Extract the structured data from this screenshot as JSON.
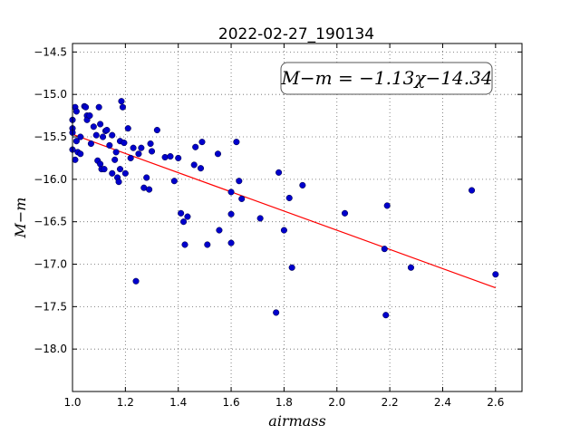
{
  "chart_data": {
    "type": "scatter",
    "title": "2022-02-27_190134",
    "xlabel": "airmass",
    "ylabel": "M−m",
    "xlim": [
      1.0,
      2.7
    ],
    "ylim": [
      -18.5,
      -14.4
    ],
    "y_inverted": true,
    "grid": true,
    "x_ticks": [
      "1.0",
      "1.2",
      "1.4",
      "1.6",
      "1.8",
      "2.0",
      "2.2",
      "2.4",
      "2.6"
    ],
    "y_ticks": [
      "−14.5",
      "−15.0",
      "−15.5",
      "−16.0",
      "−16.5",
      "−17.0",
      "−17.5",
      "−18.0"
    ],
    "annotation": "M−m = −1.13χ−14.34",
    "fit": {
      "slope": -1.13,
      "intercept": -14.34,
      "x_range": [
        1.0,
        2.6
      ],
      "color": "#ff0000"
    },
    "marker_color": "#0000cc",
    "points": [
      [
        1.0,
        -15.3
      ],
      [
        1.0,
        -15.4
      ],
      [
        1.0,
        -15.45
      ],
      [
        1.0,
        -15.65
      ],
      [
        1.01,
        -15.77
      ],
      [
        1.01,
        -15.15
      ],
      [
        1.015,
        -15.2
      ],
      [
        1.015,
        -15.55
      ],
      [
        1.02,
        -15.68
      ],
      [
        1.03,
        -15.7
      ],
      [
        1.03,
        -15.5
      ],
      [
        1.045,
        -15.14
      ],
      [
        1.05,
        -15.15
      ],
      [
        1.055,
        -15.25
      ],
      [
        1.055,
        -15.3
      ],
      [
        1.065,
        -15.25
      ],
      [
        1.07,
        -15.58
      ],
      [
        1.08,
        -15.38
      ],
      [
        1.09,
        -15.48
      ],
      [
        1.095,
        -15.78
      ],
      [
        1.1,
        -15.15
      ],
      [
        1.105,
        -15.35
      ],
      [
        1.105,
        -15.82
      ],
      [
        1.11,
        -15.88
      ],
      [
        1.115,
        -15.5
      ],
      [
        1.12,
        -15.88
      ],
      [
        1.125,
        -15.43
      ],
      [
        1.13,
        -15.42
      ],
      [
        1.14,
        -15.6
      ],
      [
        1.15,
        -15.93
      ],
      [
        1.15,
        -15.48
      ],
      [
        1.16,
        -15.77
      ],
      [
        1.165,
        -15.68
      ],
      [
        1.17,
        -15.98
      ],
      [
        1.175,
        -16.03
      ],
      [
        1.18,
        -15.88
      ],
      [
        1.18,
        -15.55
      ],
      [
        1.185,
        -15.08
      ],
      [
        1.19,
        -15.15
      ],
      [
        1.195,
        -15.57
      ],
      [
        1.2,
        -15.93
      ],
      [
        1.21,
        -15.4
      ],
      [
        1.22,
        -15.75
      ],
      [
        1.23,
        -15.63
      ],
      [
        1.24,
        -17.2
      ],
      [
        1.25,
        -15.7
      ],
      [
        1.26,
        -15.63
      ],
      [
        1.27,
        -16.1
      ],
      [
        1.28,
        -15.98
      ],
      [
        1.29,
        -16.12
      ],
      [
        1.295,
        -15.58
      ],
      [
        1.3,
        -15.67
      ],
      [
        1.32,
        -15.42
      ],
      [
        1.35,
        -15.74
      ],
      [
        1.37,
        -15.73
      ],
      [
        1.385,
        -16.02
      ],
      [
        1.4,
        -15.75
      ],
      [
        1.41,
        -16.4
      ],
      [
        1.42,
        -16.5
      ],
      [
        1.425,
        -16.77
      ],
      [
        1.435,
        -16.44
      ],
      [
        1.46,
        -15.83
      ],
      [
        1.465,
        -15.62
      ],
      [
        1.485,
        -15.87
      ],
      [
        1.49,
        -15.56
      ],
      [
        1.51,
        -16.77
      ],
      [
        1.55,
        -15.7
      ],
      [
        1.555,
        -16.6
      ],
      [
        1.6,
        -16.15
      ],
      [
        1.6,
        -16.41
      ],
      [
        1.6,
        -16.75
      ],
      [
        1.62,
        -15.56
      ],
      [
        1.63,
        -16.02
      ],
      [
        1.64,
        -16.23
      ],
      [
        1.71,
        -16.46
      ],
      [
        1.77,
        -17.57
      ],
      [
        1.78,
        -15.92
      ],
      [
        1.8,
        -16.6
      ],
      [
        1.82,
        -16.22
      ],
      [
        1.83,
        -17.04
      ],
      [
        1.87,
        -16.07
      ],
      [
        2.03,
        -16.4
      ],
      [
        2.18,
        -16.82
      ],
      [
        2.185,
        -17.6
      ],
      [
        2.19,
        -16.31
      ],
      [
        2.28,
        -17.04
      ],
      [
        2.51,
        -16.13
      ],
      [
        2.6,
        -17.12
      ]
    ]
  }
}
